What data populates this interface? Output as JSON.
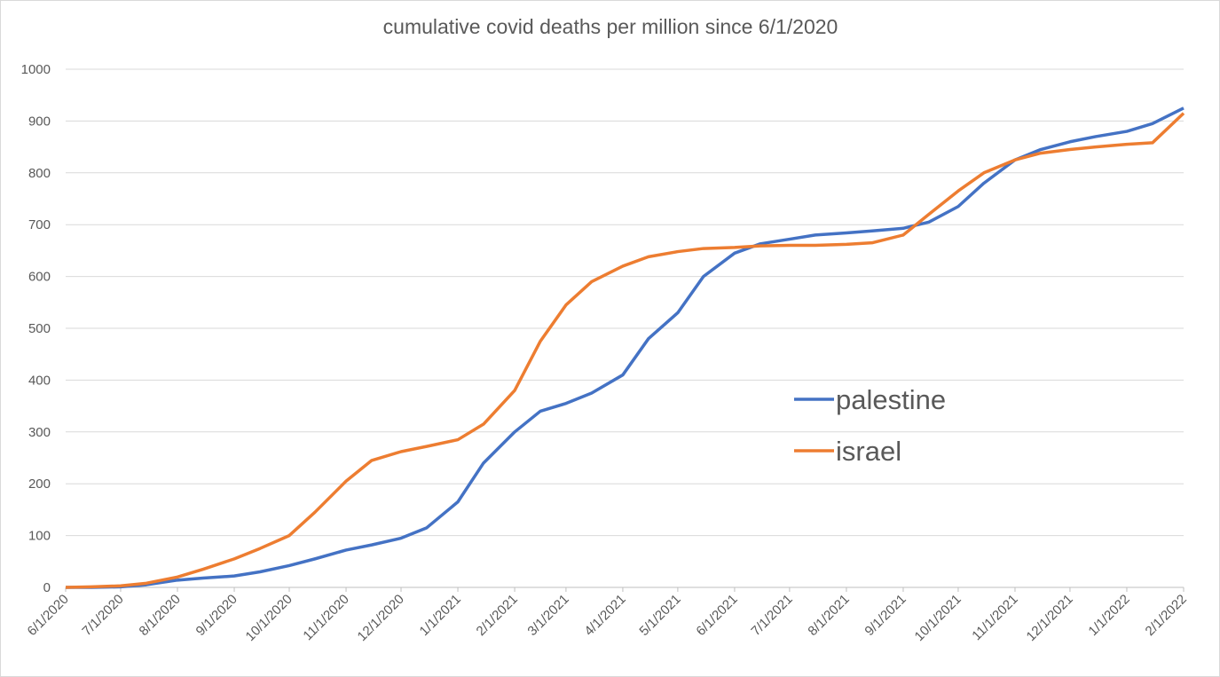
{
  "chart_data": {
    "type": "line",
    "title": "cumulative covid deaths per million since 6/1/2020",
    "x": [
      "6/1/2020",
      "6/15/2020",
      "7/1/2020",
      "7/15/2020",
      "8/1/2020",
      "8/15/2020",
      "9/1/2020",
      "9/15/2020",
      "10/1/2020",
      "10/15/2020",
      "11/1/2020",
      "11/15/2020",
      "12/1/2020",
      "12/15/2020",
      "1/1/2021",
      "1/15/2021",
      "2/1/2021",
      "2/15/2021",
      "3/1/2021",
      "3/15/2021",
      "4/1/2021",
      "4/15/2021",
      "5/1/2021",
      "5/15/2021",
      "6/1/2021",
      "6/15/2021",
      "7/1/2021",
      "7/15/2021",
      "8/1/2021",
      "8/15/2021",
      "9/1/2021",
      "9/15/2021",
      "10/1/2021",
      "10/15/2021",
      "11/1/2021",
      "11/15/2021",
      "12/1/2021",
      "12/15/2021",
      "1/1/2022",
      "1/15/2022",
      "2/1/2022"
    ],
    "series": [
      {
        "name": "palestine",
        "color": "#4472c4",
        "values": [
          0,
          0,
          1,
          5,
          14,
          18,
          22,
          30,
          42,
          55,
          72,
          82,
          95,
          115,
          165,
          240,
          300,
          340,
          355,
          375,
          410,
          480,
          530,
          600,
          645,
          663,
          672,
          680,
          684,
          688,
          693,
          705,
          735,
          780,
          825,
          845,
          860,
          870,
          880,
          895,
          925
        ]
      },
      {
        "name": "israel",
        "color": "#ed7d31",
        "values": [
          0,
          1,
          3,
          8,
          20,
          35,
          55,
          75,
          100,
          145,
          205,
          245,
          262,
          272,
          285,
          315,
          380,
          475,
          545,
          590,
          620,
          638,
          648,
          654,
          656,
          659,
          660,
          660,
          662,
          665,
          680,
          720,
          765,
          800,
          825,
          838,
          845,
          850,
          855,
          858,
          915
        ]
      }
    ],
    "xlim": [
      "6/1/2020",
      "2/1/2022"
    ],
    "xticks": [
      "6/1/2020",
      "7/1/2020",
      "8/1/2020",
      "9/1/2020",
      "10/1/2020",
      "11/1/2020",
      "12/1/2020",
      "1/1/2021",
      "2/1/2021",
      "3/1/2021",
      "4/1/2021",
      "5/1/2021",
      "6/1/2021",
      "7/1/2021",
      "8/1/2021",
      "9/1/2021",
      "10/1/2021",
      "11/1/2021",
      "12/1/2021",
      "1/1/2022",
      "2/1/2022"
    ],
    "ylim": [
      0,
      1000
    ],
    "yticks": [
      0,
      100,
      200,
      300,
      400,
      500,
      600,
      700,
      800,
      900,
      1000
    ],
    "grid": true,
    "legend": "right"
  }
}
